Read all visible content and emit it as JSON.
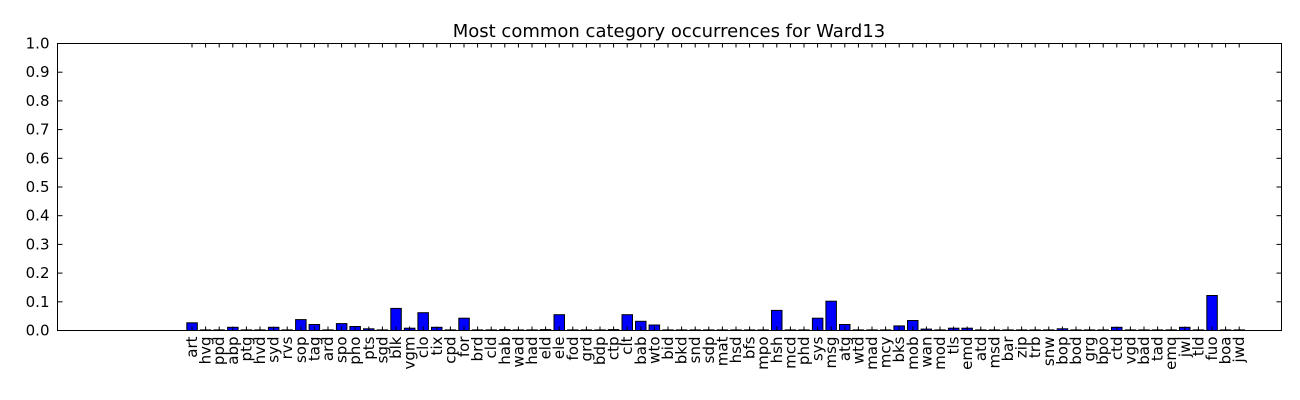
{
  "chart_data": {
    "type": "bar",
    "title": "Most common category occurrences for Ward13",
    "xlabel": "",
    "ylabel": "",
    "ylim": [
      0.0,
      1.0
    ],
    "yticks": [
      "0.0",
      "0.1",
      "0.2",
      "0.3",
      "0.4",
      "0.5",
      "0.6",
      "0.7",
      "0.8",
      "0.9",
      "1.0"
    ],
    "grid": false,
    "colors": {
      "bar": "#0000ff",
      "edge": "#000000"
    },
    "categories": [
      "art",
      "hvg",
      "ppd",
      "abp",
      "ptg",
      "hvd",
      "syd",
      "rvs",
      "sop",
      "tag",
      "ard",
      "spo",
      "pho",
      "pts",
      "sgd",
      "blk",
      "vgm",
      "clo",
      "tix",
      "cpd",
      "for",
      "brd",
      "cld",
      "hab",
      "wad",
      "had",
      "eld",
      "ele",
      "fod",
      "grd",
      "bdp",
      "ctp",
      "clt",
      "bab",
      "wto",
      "bid",
      "bkd",
      "snd",
      "sdp",
      "mat",
      "hsd",
      "bfs",
      "mpo",
      "hsh",
      "mcd",
      "phd",
      "sys",
      "msg",
      "atg",
      "wtd",
      "mad",
      "mcy",
      "bks",
      "mob",
      "wan",
      "mod",
      "tls",
      "emd",
      "atd",
      "msd",
      "bar",
      "zip",
      "trb",
      "snw",
      "bop",
      "bod",
      "grg",
      "bpo",
      "ctd",
      "vgd",
      "bad",
      "tad",
      "emq",
      "jwl",
      "tld",
      "fuo",
      "boa",
      "jwd"
    ],
    "values": [
      0.027,
      0.001,
      0.001,
      0.011,
      0.001,
      0.001,
      0.011,
      0.001,
      0.038,
      0.021,
      0.001,
      0.024,
      0.014,
      0.006,
      0.001,
      0.077,
      0.008,
      0.062,
      0.011,
      0.001,
      0.043,
      0.001,
      0.001,
      0.003,
      0.001,
      0.001,
      0.003,
      0.055,
      0.001,
      0.001,
      0.001,
      0.003,
      0.055,
      0.032,
      0.019,
      0.001,
      0.001,
      0.001,
      0.001,
      0.001,
      0.001,
      0.001,
      0.001,
      0.07,
      0.001,
      0.001,
      0.043,
      0.102,
      0.021,
      0.001,
      0.001,
      0.001,
      0.016,
      0.035,
      0.005,
      0.001,
      0.008,
      0.008,
      0.001,
      0.001,
      0.001,
      0.001,
      0.001,
      0.001,
      0.006,
      0.001,
      0.001,
      0.001,
      0.011,
      0.001,
      0.001,
      0.001,
      0.001,
      0.011,
      0.001,
      0.122,
      0.001,
      0.001
    ]
  }
}
